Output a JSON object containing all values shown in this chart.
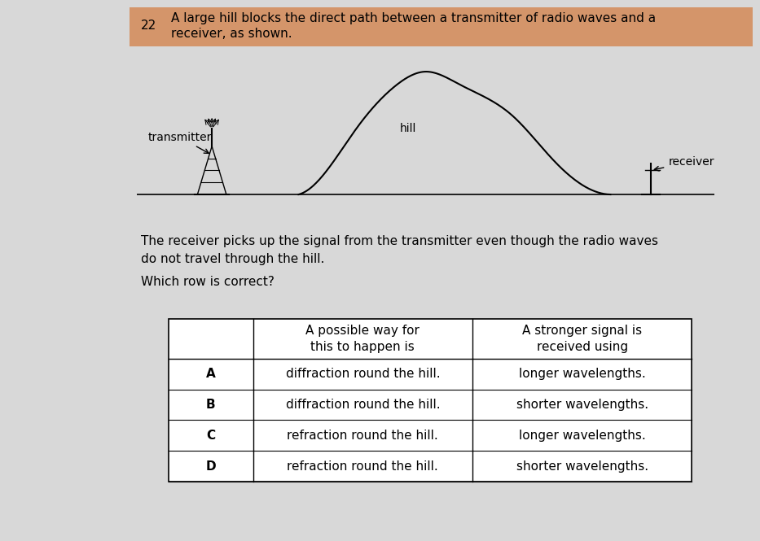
{
  "question_number": "22",
  "header_text": "A large hill blocks the direct path between a transmitter of radio waves and a\nreceiver, as shown.",
  "body_text1": "The receiver picks up the signal from the transmitter even though the radio waves\ndo not travel through the hill.",
  "body_text2": "Which row is correct?",
  "header_bg_color": "#D4956A",
  "bg_color": "#D8D8D8",
  "table_bg_color": "#FFFFFF",
  "transmitter_label": "transmitter",
  "hill_label": "hill",
  "receiver_label": "receiver",
  "col1_header": "A possible way for\nthis to happen is",
  "col2_header": "A stronger signal is\nreceived using",
  "rows": [
    {
      "row_label": "A",
      "col1": "diffraction round the hill.",
      "col2": "longer wavelengths."
    },
    {
      "row_label": "B",
      "col1": "diffraction round the hill.",
      "col2": "shorter wavelengths."
    },
    {
      "row_label": "C",
      "col1": "refraction round the hill.",
      "col2": "longer wavelengths."
    },
    {
      "row_label": "D",
      "col1": "refraction round the hill.",
      "col2": "shorter wavelengths."
    }
  ],
  "font_size_header": 11,
  "font_size_body": 11,
  "font_size_table": 11,
  "font_size_diagram": 10
}
